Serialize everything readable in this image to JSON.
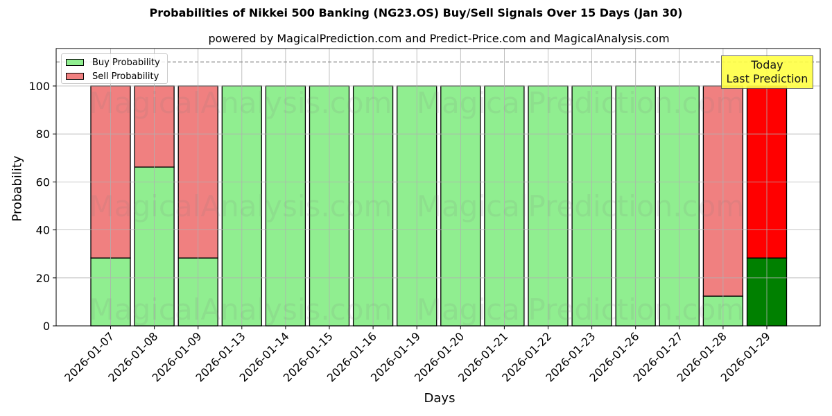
{
  "header": {
    "title": "Probabilities of Nikkei 500 Banking (NG23.OS) Buy/Sell Signals Over 15 Days (Jan 30)",
    "subtitle": "powered by MagicalPrediction.com and Predict-Price.com and MagicalAnalysis.com"
  },
  "legend": {
    "buy_label": "Buy Probability",
    "sell_label": "Sell Probability"
  },
  "annotation": {
    "line1": "Today",
    "line2": "Last Prediction"
  },
  "axes": {
    "xlabel": "Days",
    "ylabel": "Probability"
  },
  "watermarks": [
    "MagicalAnalysis.com",
    "MagicalPrediction.com"
  ],
  "colors": {
    "buy": "#90ee90",
    "sell": "#f08080",
    "buy_today": "#008000",
    "sell_today": "#ff0000",
    "annotation_bg": "#ffff44"
  },
  "chart_data": {
    "type": "bar",
    "stacked": true,
    "title": "Probabilities of Nikkei 500 Banking (NG23.OS) Buy/Sell Signals Over 15 Days (Jan 30)",
    "subtitle": "powered by MagicalPrediction.com and Predict-Price.com and MagicalAnalysis.com",
    "xlabel": "Days",
    "ylabel": "Probability",
    "ylim": [
      0,
      115
    ],
    "yticks": [
      0,
      20,
      40,
      60,
      80,
      100
    ],
    "grid": true,
    "legend_position": "upper left",
    "reference_line": {
      "y": 110,
      "style": "dashed"
    },
    "categories": [
      "2026-01-07",
      "2026-01-08",
      "2026-01-09",
      "2026-01-13",
      "2026-01-14",
      "2026-01-15",
      "2026-01-16",
      "2026-01-19",
      "2026-01-20",
      "2026-01-21",
      "2026-01-22",
      "2026-01-23",
      "2026-01-26",
      "2026-01-27",
      "2026-01-28",
      "2026-01-29"
    ],
    "series": [
      {
        "name": "Buy Probability",
        "values": [
          28.3,
          66.2,
          28.3,
          100,
          100,
          100,
          100,
          100,
          100,
          100,
          100,
          100,
          100,
          100,
          12.4,
          28.3
        ]
      },
      {
        "name": "Sell Probability",
        "values": [
          71.7,
          33.8,
          71.7,
          0,
          0,
          0,
          0,
          0,
          0,
          0,
          0,
          0,
          0,
          0,
          87.6,
          71.7
        ]
      }
    ],
    "annotations": [
      {
        "text": "Today\nLast Prediction",
        "category": "2026-01-29"
      }
    ]
  }
}
